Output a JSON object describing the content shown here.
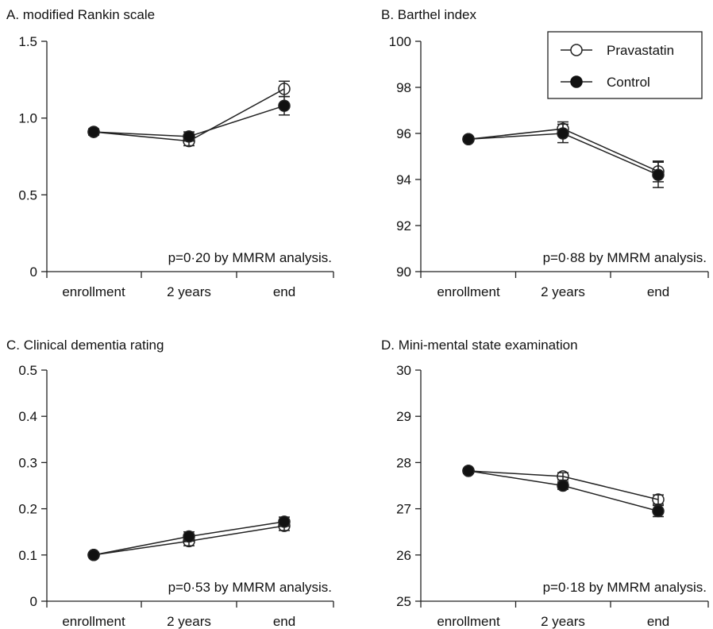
{
  "legend": {
    "placement": "top-right",
    "entries": [
      {
        "label": "Pravastatin",
        "marker": "open-circle"
      },
      {
        "label": "Control",
        "marker": "filled-circle"
      }
    ]
  },
  "chart_data": [
    {
      "type": "line",
      "title": "A. modified Rankin scale",
      "categories": [
        "enrollment",
        "2 years",
        "end"
      ],
      "ylim": [
        0,
        1.5
      ],
      "yticks": [
        "0",
        "0.5",
        "1.0",
        "1.5"
      ],
      "note": "p=0·20 by MMRM analysis.",
      "grid": false,
      "series": [
        {
          "name": "Pravastatin",
          "values": [
            0.91,
            0.85,
            1.19
          ],
          "err": [
            0.02,
            0.03,
            0.05
          ],
          "marker": "open"
        },
        {
          "name": "Control",
          "values": [
            0.91,
            0.88,
            1.08
          ],
          "err": [
            0.02,
            0.03,
            0.06
          ],
          "marker": "filled"
        }
      ]
    },
    {
      "type": "line",
      "title": "B. Barthel index",
      "categories": [
        "enrollment",
        "2 years",
        "end"
      ],
      "ylim": [
        90,
        100
      ],
      "yticks": [
        "90",
        "92",
        "94",
        "96",
        "98",
        "100"
      ],
      "note": "p=0·88 by MMRM analysis.",
      "grid": false,
      "series": [
        {
          "name": "Pravastatin",
          "values": [
            95.75,
            96.2,
            94.35
          ],
          "err": [
            0.1,
            0.3,
            0.45
          ],
          "marker": "open"
        },
        {
          "name": "Control",
          "values": [
            95.75,
            96.0,
            94.2
          ],
          "err": [
            0.1,
            0.4,
            0.55
          ],
          "marker": "filled"
        }
      ]
    },
    {
      "type": "line",
      "title": "C. Clinical dementia rating",
      "categories": [
        "enrollment",
        "2 years",
        "end"
      ],
      "ylim": [
        0,
        0.5
      ],
      "yticks": [
        "0",
        "0.1",
        "0.2",
        "0.3",
        "0.4",
        "0.5"
      ],
      "note": "p=0·53 by MMRM analysis.",
      "grid": false,
      "series": [
        {
          "name": "Pravastatin",
          "values": [
            0.1,
            0.13,
            0.163
          ],
          "err": [
            0.005,
            0.01,
            0.01
          ],
          "marker": "open"
        },
        {
          "name": "Control",
          "values": [
            0.1,
            0.14,
            0.172
          ],
          "err": [
            0.005,
            0.01,
            0.01
          ],
          "marker": "filled"
        }
      ]
    },
    {
      "type": "line",
      "title": "D. Mini-mental state examination",
      "categories": [
        "enrollment",
        "2 years",
        "end"
      ],
      "ylim": [
        25,
        30
      ],
      "yticks": [
        "25",
        "26",
        "27",
        "28",
        "29",
        "30"
      ],
      "note": "p=0·18 by MMRM analysis.",
      "grid": false,
      "series": [
        {
          "name": "Pravastatin",
          "values": [
            27.82,
            27.7,
            27.2
          ],
          "err": [
            0.05,
            0.08,
            0.1
          ],
          "marker": "open"
        },
        {
          "name": "Control",
          "values": [
            27.82,
            27.5,
            26.95
          ],
          "err": [
            0.05,
            0.08,
            0.12
          ],
          "marker": "filled"
        }
      ]
    }
  ]
}
